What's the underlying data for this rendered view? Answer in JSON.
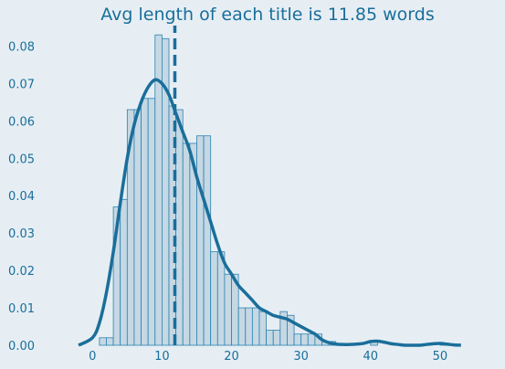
{
  "chart_data": {
    "type": "histogram",
    "title": "Avg length of each title is 11.85 words",
    "xlabel": "",
    "ylabel": "",
    "xlim": [
      -4.5,
      55
    ],
    "ylim": [
      0,
      0.085
    ],
    "x_ticks": [
      0,
      10,
      20,
      30,
      40,
      50
    ],
    "y_ticks": [
      0.0,
      0.01,
      0.02,
      0.03,
      0.04,
      0.05,
      0.06,
      0.07,
      0.08
    ],
    "y_tick_labels": [
      "0.00",
      "0.01",
      "0.02",
      "0.03",
      "0.04",
      "0.05",
      "0.06",
      "0.07",
      "0.08"
    ],
    "mean_line": 11.85,
    "bin_width": 1,
    "bins": [
      {
        "x0": 1,
        "density": 0.002
      },
      {
        "x0": 2,
        "density": 0.002
      },
      {
        "x0": 3,
        "density": 0.037
      },
      {
        "x0": 4,
        "density": 0.039
      },
      {
        "x0": 5,
        "density": 0.063
      },
      {
        "x0": 6,
        "density": 0.063
      },
      {
        "x0": 7,
        "density": 0.066
      },
      {
        "x0": 8,
        "density": 0.066
      },
      {
        "x0": 9,
        "density": 0.083
      },
      {
        "x0": 10,
        "density": 0.082
      },
      {
        "x0": 11,
        "density": 0.064
      },
      {
        "x0": 12,
        "density": 0.063
      },
      {
        "x0": 13,
        "density": 0.054
      },
      {
        "x0": 14,
        "density": 0.054
      },
      {
        "x0": 15,
        "density": 0.056
      },
      {
        "x0": 16,
        "density": 0.056
      },
      {
        "x0": 17,
        "density": 0.025
      },
      {
        "x0": 18,
        "density": 0.025
      },
      {
        "x0": 19,
        "density": 0.019
      },
      {
        "x0": 20,
        "density": 0.019
      },
      {
        "x0": 21,
        "density": 0.01
      },
      {
        "x0": 22,
        "density": 0.01
      },
      {
        "x0": 23,
        "density": 0.01
      },
      {
        "x0": 24,
        "density": 0.009
      },
      {
        "x0": 25,
        "density": 0.004
      },
      {
        "x0": 26,
        "density": 0.004
      },
      {
        "x0": 27,
        "density": 0.009
      },
      {
        "x0": 28,
        "density": 0.008
      },
      {
        "x0": 29,
        "density": 0.003
      },
      {
        "x0": 30,
        "density": 0.003
      },
      {
        "x0": 31,
        "density": 0.003
      },
      {
        "x0": 32,
        "density": 0.003
      },
      {
        "x0": 33,
        "density": 0.001
      },
      {
        "x0": 34,
        "density": 0.001
      },
      {
        "x0": 40,
        "density": 0.001
      },
      {
        "x0": 50,
        "density": 0.0005
      }
    ],
    "kde": {
      "x": [
        -2,
        0,
        1,
        2,
        3,
        4,
        5,
        6,
        7,
        8,
        9,
        10,
        11,
        12,
        13,
        14,
        15,
        16,
        17,
        18,
        19,
        20,
        21,
        22,
        23,
        24,
        25,
        26,
        27,
        28,
        29,
        30,
        31,
        32,
        33,
        34,
        35,
        36,
        37,
        38,
        39,
        40,
        41,
        42,
        43,
        44,
        45,
        46,
        47,
        48,
        49,
        50,
        51,
        52,
        53
      ],
      "y": [
        0.0,
        0.002,
        0.006,
        0.014,
        0.025,
        0.038,
        0.05,
        0.059,
        0.065,
        0.069,
        0.071,
        0.07,
        0.067,
        0.062,
        0.057,
        0.052,
        0.045,
        0.039,
        0.033,
        0.027,
        0.022,
        0.019,
        0.016,
        0.014,
        0.012,
        0.01,
        0.009,
        0.008,
        0.0075,
        0.007,
        0.006,
        0.005,
        0.004,
        0.003,
        0.0015,
        0.0007,
        0.0003,
        0.0002,
        0.0002,
        0.0003,
        0.0005,
        0.001,
        0.0011,
        0.0008,
        0.0004,
        0.0002,
        0.0,
        0.0,
        0.0,
        0.0002,
        0.0004,
        0.0005,
        0.0003,
        0.0001,
        0.0
      ]
    },
    "colors": {
      "bar_fill": "#c6d8e4",
      "bar_edge": "#2b82b0",
      "line": "#1a6e9a",
      "text": "#1a6e9a",
      "background": "#e6eef4"
    },
    "grid": false
  }
}
